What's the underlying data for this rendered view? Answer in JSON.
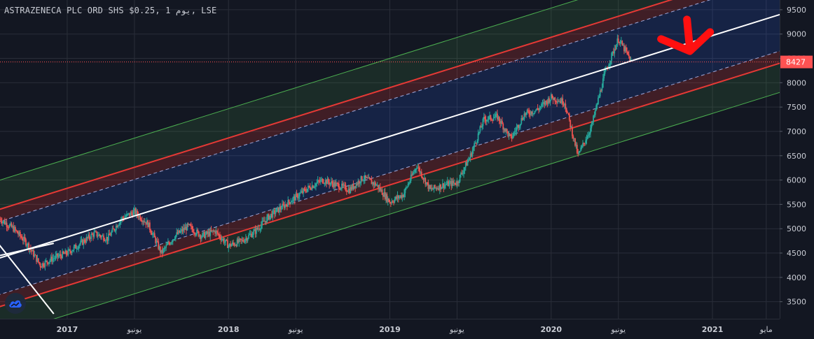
{
  "header": {
    "title": "ASTRAZENECA PLC ORD SHS $0.25, 1 يوم, LSE"
  },
  "colors": {
    "background": "#131722",
    "grid": "#2a2e39",
    "up": "#26a69a",
    "down": "#ef5350",
    "midline": "#ffffff",
    "inner_channel": "#e53935",
    "outer_channel": "#4caf50",
    "price_line": "#ff5252",
    "arrow": "#ff1010"
  },
  "icons": {
    "logo": "tradingview-cloud-icon",
    "arrow": "down-arrow-annotation"
  },
  "chart_data": {
    "type": "candlestick",
    "title": "ASTRAZENECA PLC ORD SHS $0.25, 1 يوم, LSE",
    "ylim": [
      3150,
      9700
    ],
    "y_ticks": [
      3500,
      4000,
      4500,
      5000,
      5500,
      6000,
      6500,
      7000,
      7500,
      8000,
      8500,
      9000,
      9500
    ],
    "last_price": 8427,
    "x_ticks": [
      {
        "date": "2017-01",
        "label": "2017"
      },
      {
        "date": "2017-06",
        "label": "يونيو"
      },
      {
        "date": "2018-01",
        "label": "2018"
      },
      {
        "date": "2018-06",
        "label": "يونيو"
      },
      {
        "date": "2019-01",
        "label": "2019"
      },
      {
        "date": "2019-06",
        "label": "يونيو"
      },
      {
        "date": "2020-01",
        "label": "2020"
      },
      {
        "date": "2020-06",
        "label": "يونيو"
      },
      {
        "date": "2021-01",
        "label": "2021"
      },
      {
        "date": "2021-05",
        "label": "مايو"
      }
    ],
    "xlim": [
      "2016-08",
      "2021-06"
    ],
    "price_path": [
      [
        "2016-08",
        5200
      ],
      [
        "2016-09",
        5000
      ],
      [
        "2016-10",
        4700
      ],
      [
        "2016-11",
        4250
      ],
      [
        "2016-12",
        4400
      ],
      [
        "2017-01",
        4500
      ],
      [
        "2017-02",
        4700
      ],
      [
        "2017-03",
        4900
      ],
      [
        "2017-04",
        4800
      ],
      [
        "2017-05",
        5200
      ],
      [
        "2017-06",
        5350
      ],
      [
        "2017-07",
        5100
      ],
      [
        "2017-08",
        4500
      ],
      [
        "2017-09",
        4850
      ],
      [
        "2017-10",
        5050
      ],
      [
        "2017-11",
        4850
      ],
      [
        "2017-12",
        4950
      ],
      [
        "2018-01",
        4650
      ],
      [
        "2018-02",
        4750
      ],
      [
        "2018-03",
        4950
      ],
      [
        "2018-04",
        5250
      ],
      [
        "2018-05",
        5450
      ],
      [
        "2018-06",
        5650
      ],
      [
        "2018-07",
        5850
      ],
      [
        "2018-08",
        6000
      ],
      [
        "2018-09",
        5900
      ],
      [
        "2018-10",
        5800
      ],
      [
        "2018-11",
        6050
      ],
      [
        "2018-12",
        5900
      ],
      [
        "2019-01",
        5550
      ],
      [
        "2019-02",
        5700
      ],
      [
        "2019-03",
        6300
      ],
      [
        "2019-04",
        5800
      ],
      [
        "2019-05",
        5900
      ],
      [
        "2019-06",
        5950
      ],
      [
        "2019-07",
        6500
      ],
      [
        "2019-08",
        7250
      ],
      [
        "2019-09",
        7300
      ],
      [
        "2019-10",
        6850
      ],
      [
        "2019-11",
        7350
      ],
      [
        "2019-12",
        7450
      ],
      [
        "2020-01",
        7700
      ],
      [
        "2020-02",
        7600
      ],
      [
        "2020-03",
        6500
      ],
      [
        "2020-04",
        7100
      ],
      [
        "2020-05",
        8200
      ],
      [
        "2020-06",
        8900
      ],
      [
        "2020-07",
        8427
      ]
    ],
    "mid_line": [
      [
        "2016-08",
        4400
      ],
      [
        "2021-06",
        9400
      ]
    ],
    "channel_offsets": {
      "dashed": 750,
      "inner_red": 1000,
      "outer_green": 1600
    },
    "start_line": [
      [
        "2016-07",
        5000
      ],
      [
        "2016-12",
        3250
      ]
    ],
    "arrow_annotation": {
      "date": "2020-11",
      "price_from": 9300,
      "price_to": 8650
    }
  }
}
